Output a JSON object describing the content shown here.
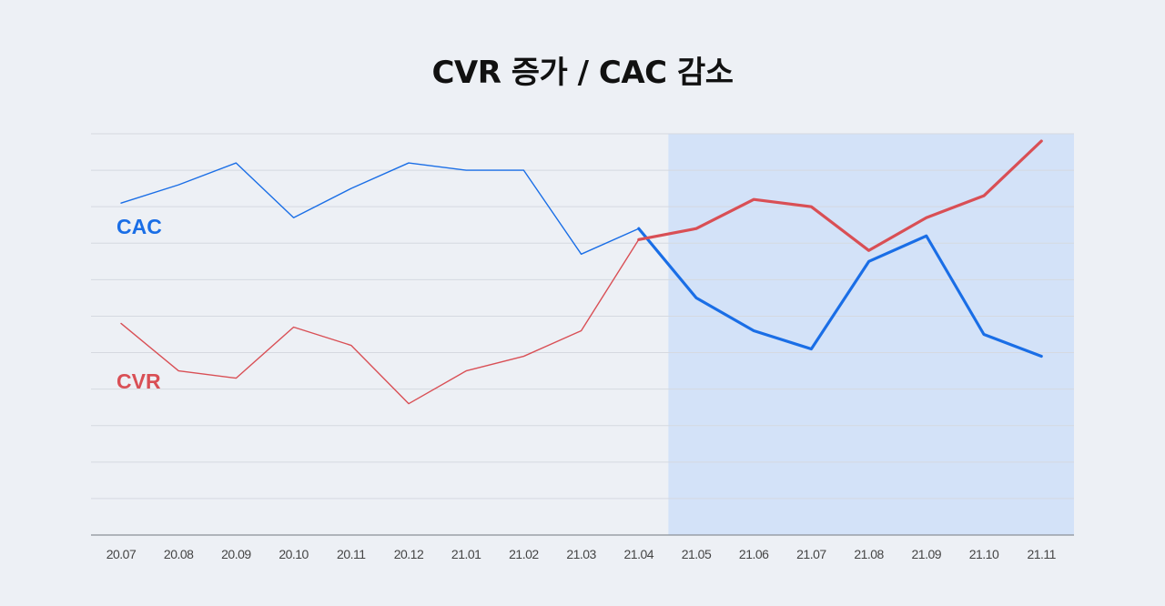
{
  "title": "CVR 증가 / CAC 감소",
  "chart_data": {
    "type": "line",
    "categories": [
      "20.07",
      "20.08",
      "20.09",
      "20.10",
      "20.11",
      "20.12",
      "21.01",
      "21.02",
      "21.03",
      "21.04",
      "21.05",
      "21.06",
      "21.07",
      "21.08",
      "21.09",
      "21.10",
      "21.11"
    ],
    "series": [
      {
        "name": "CAC",
        "color": "#1a6ee6",
        "values": [
          9.1,
          9.6,
          10.2,
          8.7,
          9.5,
          10.2,
          10.0,
          10.0,
          7.7,
          8.4,
          6.5,
          5.6,
          5.1,
          7.5,
          8.2,
          5.5,
          4.9
        ]
      },
      {
        "name": "CVR",
        "color": "#d94f55",
        "values": [
          5.8,
          4.5,
          4.3,
          5.7,
          5.2,
          3.6,
          4.5,
          4.9,
          5.6,
          8.1,
          8.4,
          9.2,
          9.0,
          7.8,
          8.7,
          9.3,
          10.8
        ]
      }
    ],
    "highlight_range": [
      "21.05",
      "21.11"
    ],
    "highlight_color": "#d3e2f8",
    "ylim": [
      0,
      11
    ],
    "y_ticks_shown": false,
    "grid": true,
    "xlabel": "",
    "ylabel": ""
  }
}
